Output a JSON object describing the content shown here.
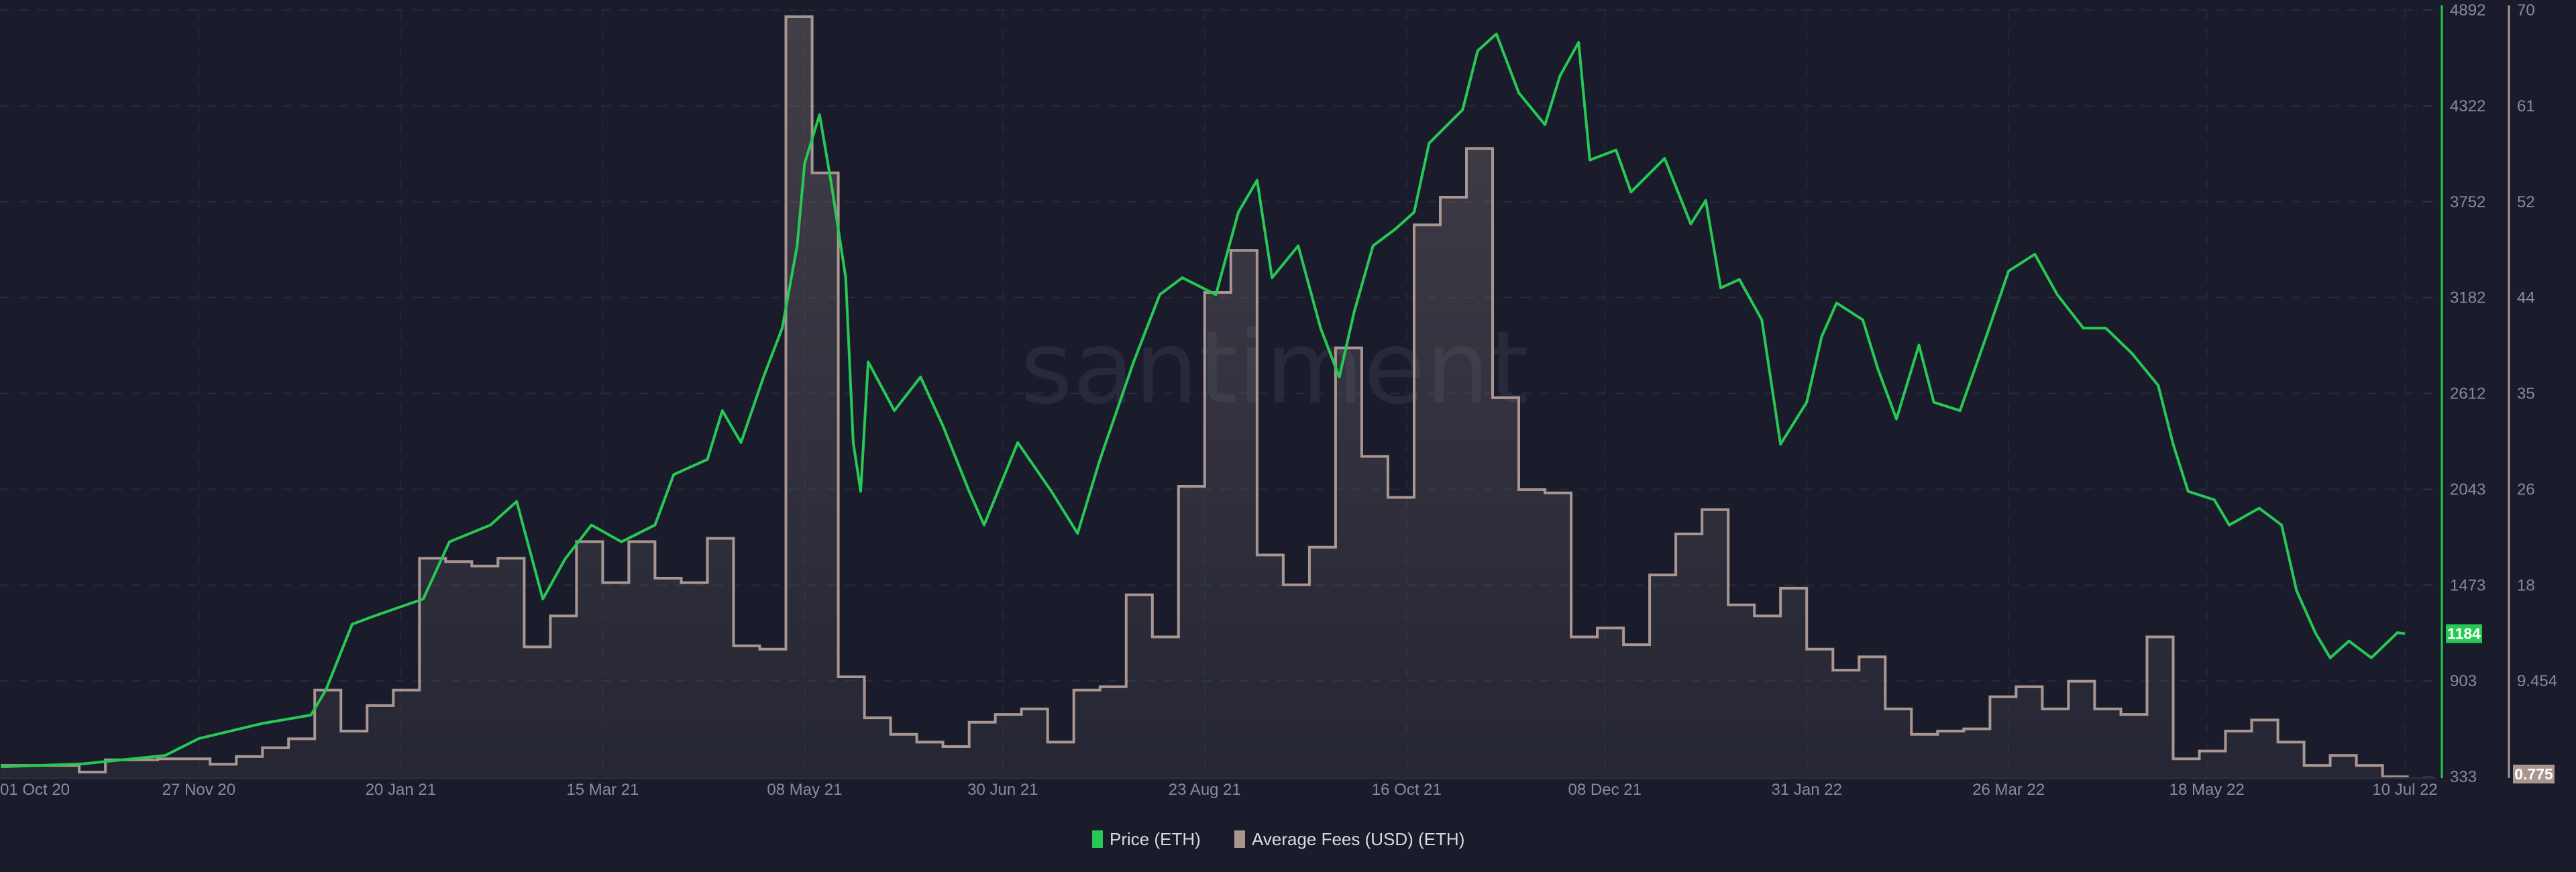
{
  "chart_data": {
    "type": "line",
    "watermark": "santiment",
    "x_tick_labels": [
      "01 Oct 20",
      "27 Nov 20",
      "20 Jan 21",
      "15 Mar 21",
      "08 May 21",
      "30 Jun 21",
      "23 Aug 21",
      "16 Oct 21",
      "08 Dec 21",
      "31 Jan 22",
      "26 Mar 22",
      "18 May 22",
      "10 Jul 22"
    ],
    "x_tick_dates": [
      "2020-10-01",
      "2020-11-27",
      "2021-01-20",
      "2021-03-15",
      "2021-05-08",
      "2021-06-30",
      "2021-08-23",
      "2021-10-16",
      "2021-12-08",
      "2022-01-31",
      "2022-03-26",
      "2022-05-18",
      "2022-07-10"
    ],
    "grid": true,
    "legend_position": "bottom",
    "axes": {
      "price": {
        "ticks": [
          "4892",
          "4322",
          "3752",
          "3182",
          "2612",
          "2043",
          "1473",
          "903",
          "333"
        ],
        "ylim": [
          333,
          4892
        ],
        "position": "right",
        "color": "#26c953",
        "current_value": "1184"
      },
      "fees": {
        "ticks": [
          "70",
          "61",
          "52",
          "44",
          "35",
          "26",
          "18",
          "9.454",
          "0.775"
        ],
        "ylim": [
          0.775,
          70
        ],
        "position": "right",
        "color": "#a99690",
        "current_value": "0.775"
      }
    },
    "series": [
      {
        "name": "Price (ETH)",
        "axis": "price",
        "style": "line",
        "color": "#26c953",
        "points": [
          [
            "2020-10-05",
            392
          ],
          [
            "2020-10-27",
            410
          ],
          [
            "2020-11-18",
            460
          ],
          [
            "2020-11-27",
            560
          ],
          [
            "2020-12-14",
            650
          ],
          [
            "2020-12-27",
            700
          ],
          [
            "2020-12-31",
            850
          ],
          [
            "2021-01-07",
            1240
          ],
          [
            "2021-01-13",
            1290
          ],
          [
            "2021-01-26",
            1390
          ],
          [
            "2021-02-02",
            1730
          ],
          [
            "2021-02-13",
            1830
          ],
          [
            "2021-02-20",
            1970
          ],
          [
            "2021-02-27",
            1390
          ],
          [
            "2021-03-05",
            1630
          ],
          [
            "2021-03-12",
            1830
          ],
          [
            "2021-03-20",
            1730
          ],
          [
            "2021-03-29",
            1830
          ],
          [
            "2021-04-03",
            2130
          ],
          [
            "2021-04-12",
            2220
          ],
          [
            "2021-04-16",
            2510
          ],
          [
            "2021-04-21",
            2320
          ],
          [
            "2021-04-27",
            2710
          ],
          [
            "2021-05-02",
            3000
          ],
          [
            "2021-05-06",
            3490
          ],
          [
            "2021-05-08",
            3980
          ],
          [
            "2021-05-12",
            4270
          ],
          [
            "2021-05-15",
            3880
          ],
          [
            "2021-05-19",
            3300
          ],
          [
            "2021-05-21",
            2320
          ],
          [
            "2021-05-23",
            2030
          ],
          [
            "2021-05-25",
            2800
          ],
          [
            "2021-06-01",
            2510
          ],
          [
            "2021-06-08",
            2710
          ],
          [
            "2021-06-14",
            2420
          ],
          [
            "2021-06-21",
            2030
          ],
          [
            "2021-06-25",
            1830
          ],
          [
            "2021-07-04",
            2320
          ],
          [
            "2021-07-13",
            2030
          ],
          [
            "2021-07-20",
            1780
          ],
          [
            "2021-07-26",
            2220
          ],
          [
            "2021-08-04",
            2800
          ],
          [
            "2021-08-11",
            3200
          ],
          [
            "2021-08-17",
            3300
          ],
          [
            "2021-08-26",
            3200
          ],
          [
            "2021-09-01",
            3690
          ],
          [
            "2021-09-06",
            3880
          ],
          [
            "2021-09-10",
            3300
          ],
          [
            "2021-09-17",
            3490
          ],
          [
            "2021-09-23",
            3000
          ],
          [
            "2021-09-28",
            2710
          ],
          [
            "2021-10-02",
            3100
          ],
          [
            "2021-10-07",
            3490
          ],
          [
            "2021-10-13",
            3590
          ],
          [
            "2021-10-18",
            3690
          ],
          [
            "2021-10-22",
            4100
          ],
          [
            "2021-10-31",
            4300
          ],
          [
            "2021-11-04",
            4650
          ],
          [
            "2021-11-09",
            4750
          ],
          [
            "2021-11-15",
            4400
          ],
          [
            "2021-11-22",
            4210
          ],
          [
            "2021-11-26",
            4500
          ],
          [
            "2021-12-01",
            4700
          ],
          [
            "2021-12-04",
            4000
          ],
          [
            "2021-12-11",
            4060
          ],
          [
            "2021-12-15",
            3810
          ],
          [
            "2021-12-24",
            4010
          ],
          [
            "2021-12-31",
            3620
          ],
          [
            "2022-01-04",
            3760
          ],
          [
            "2022-01-08",
            3240
          ],
          [
            "2022-01-13",
            3290
          ],
          [
            "2022-01-19",
            3050
          ],
          [
            "2022-01-24",
            2310
          ],
          [
            "2022-01-31",
            2560
          ],
          [
            "2022-02-04",
            2950
          ],
          [
            "2022-02-08",
            3150
          ],
          [
            "2022-02-15",
            3050
          ],
          [
            "2022-02-19",
            2760
          ],
          [
            "2022-02-24",
            2460
          ],
          [
            "2022-03-02",
            2900
          ],
          [
            "2022-03-06",
            2560
          ],
          [
            "2022-03-13",
            2510
          ],
          [
            "2022-03-20",
            2950
          ],
          [
            "2022-03-26",
            3340
          ],
          [
            "2022-04-02",
            3440
          ],
          [
            "2022-04-08",
            3200
          ],
          [
            "2022-04-15",
            3000
          ],
          [
            "2022-04-21",
            3000
          ],
          [
            "2022-04-28",
            2850
          ],
          [
            "2022-05-05",
            2660
          ],
          [
            "2022-05-09",
            2310
          ],
          [
            "2022-05-13",
            2030
          ],
          [
            "2022-05-20",
            1980
          ],
          [
            "2022-05-24",
            1830
          ],
          [
            "2022-06-01",
            1930
          ],
          [
            "2022-06-07",
            1830
          ],
          [
            "2022-06-11",
            1440
          ],
          [
            "2022-06-16",
            1190
          ],
          [
            "2022-06-20",
            1040
          ],
          [
            "2022-06-25",
            1140
          ],
          [
            "2022-07-01",
            1040
          ],
          [
            "2022-07-08",
            1190
          ],
          [
            "2022-07-10",
            1184
          ]
        ]
      },
      {
        "name": "Average Fees (USD) (ETH)",
        "axis": "fees",
        "style": "step-area",
        "color": "#a99690",
        "points": [
          [
            "2020-10-05",
            1.8
          ],
          [
            "2020-10-12",
            1.8
          ],
          [
            "2020-10-19",
            1.8
          ],
          [
            "2020-10-26",
            1.2
          ],
          [
            "2020-11-02",
            2.3
          ],
          [
            "2020-11-09",
            2.3
          ],
          [
            "2020-11-16",
            2.4
          ],
          [
            "2020-11-23",
            2.4
          ],
          [
            "2020-11-30",
            1.9
          ],
          [
            "2020-12-07",
            2.6
          ],
          [
            "2020-12-14",
            3.4
          ],
          [
            "2020-12-21",
            4.2
          ],
          [
            "2020-12-28",
            8.6
          ],
          [
            "2021-01-04",
            4.9
          ],
          [
            "2021-01-11",
            7.2
          ],
          [
            "2021-01-18",
            8.6
          ],
          [
            "2021-01-25",
            20.5
          ],
          [
            "2021-02-01",
            20.2
          ],
          [
            "2021-02-08",
            19.8
          ],
          [
            "2021-02-15",
            20.5
          ],
          [
            "2021-02-22",
            12.5
          ],
          [
            "2021-03-01",
            15.3
          ],
          [
            "2021-03-08",
            22
          ],
          [
            "2021-03-15",
            18.3
          ],
          [
            "2021-03-22",
            22
          ],
          [
            "2021-03-29",
            18.7
          ],
          [
            "2021-04-05",
            18.3
          ],
          [
            "2021-04-12",
            22.3
          ],
          [
            "2021-04-19",
            12.6
          ],
          [
            "2021-04-26",
            12.3
          ],
          [
            "2021-05-03",
            69.4
          ],
          [
            "2021-05-10",
            55.3
          ],
          [
            "2021-05-17",
            9.8
          ],
          [
            "2021-05-24",
            6.1
          ],
          [
            "2021-05-31",
            4.6
          ],
          [
            "2021-06-07",
            3.9
          ],
          [
            "2021-06-14",
            3.5
          ],
          [
            "2021-06-21",
            5.7
          ],
          [
            "2021-06-28",
            6.4
          ],
          [
            "2021-07-05",
            6.9
          ],
          [
            "2021-07-12",
            3.9
          ],
          [
            "2021-07-19",
            8.6
          ],
          [
            "2021-07-26",
            8.9
          ],
          [
            "2021-08-02",
            17.2
          ],
          [
            "2021-08-09",
            13.4
          ],
          [
            "2021-08-16",
            27
          ],
          [
            "2021-08-23",
            44.5
          ],
          [
            "2021-08-30",
            48.3
          ],
          [
            "2021-09-06",
            20.8
          ],
          [
            "2021-09-13",
            18.1
          ],
          [
            "2021-09-20",
            21.5
          ],
          [
            "2021-09-27",
            39.5
          ],
          [
            "2021-10-04",
            29.7
          ],
          [
            "2021-10-11",
            26
          ],
          [
            "2021-10-18",
            50.6
          ],
          [
            "2021-10-25",
            53.1
          ],
          [
            "2021-11-01",
            57.5
          ],
          [
            "2021-11-08",
            35
          ],
          [
            "2021-11-15",
            26.7
          ],
          [
            "2021-11-22",
            26.4
          ],
          [
            "2021-11-29",
            13.4
          ],
          [
            "2021-12-06",
            14.2
          ],
          [
            "2021-12-13",
            12.7
          ],
          [
            "2021-12-20",
            19
          ],
          [
            "2021-12-27",
            22.7
          ],
          [
            "2022-01-03",
            24.9
          ],
          [
            "2022-01-10",
            16.3
          ],
          [
            "2022-01-17",
            15.3
          ],
          [
            "2022-01-24",
            17.8
          ],
          [
            "2022-01-31",
            12.3
          ],
          [
            "2022-02-07",
            10.4
          ],
          [
            "2022-02-14",
            11.6
          ],
          [
            "2022-02-21",
            6.9
          ],
          [
            "2022-02-28",
            4.6
          ],
          [
            "2022-03-07",
            4.9
          ],
          [
            "2022-03-14",
            5.1
          ],
          [
            "2022-03-21",
            8
          ],
          [
            "2022-03-28",
            8.9
          ],
          [
            "2022-04-04",
            6.9
          ],
          [
            "2022-04-11",
            9.4
          ],
          [
            "2022-04-18",
            6.9
          ],
          [
            "2022-04-25",
            6.4
          ],
          [
            "2022-05-02",
            13.4
          ],
          [
            "2022-05-09",
            2.4
          ],
          [
            "2022-05-16",
            3.1
          ],
          [
            "2022-05-23",
            4.9
          ],
          [
            "2022-05-30",
            5.9
          ],
          [
            "2022-06-06",
            3.9
          ],
          [
            "2022-06-13",
            1.8
          ],
          [
            "2022-06-20",
            2.7
          ],
          [
            "2022-06-27",
            1.8
          ],
          [
            "2022-07-04",
            0.775
          ]
        ]
      }
    ]
  },
  "legend": {
    "items": [
      {
        "label": "Price (ETH)",
        "color": "#26c953"
      },
      {
        "label": "Average Fees (USD) (ETH)",
        "color": "#a99690"
      }
    ]
  }
}
